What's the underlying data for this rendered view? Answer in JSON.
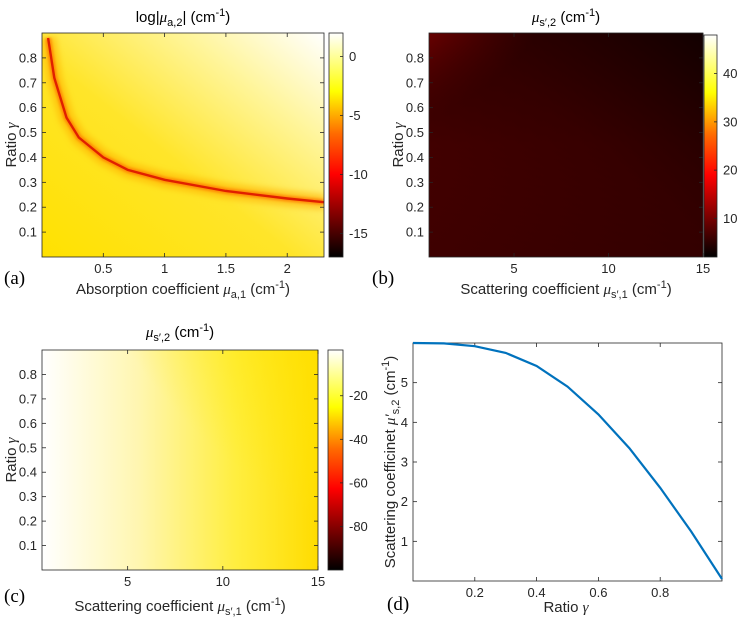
{
  "chart_data": [
    {
      "panel": "(a)",
      "type": "heatmap",
      "title": "log|μa,2| (cm-1)",
      "title_parts": {
        "pre": "log|",
        "sym": "μ",
        "sub": "a,2",
        "post": "| (cm",
        "sup": "-1",
        "end": ")"
      },
      "xlabel": "Absorption coefficient μa,1 (cm-1)",
      "xlabel_parts": {
        "pre": "Absorption coefficient ",
        "sym": "μ",
        "sub": "a,1",
        "post": " (cm",
        "sup": "-1",
        "end": ")"
      },
      "ylabel": "Ratio γ",
      "ylabel_parts": {
        "pre": "Ratio ",
        "sym": "γ"
      },
      "xlim": [
        0,
        2.3
      ],
      "ylim": [
        0,
        0.9
      ],
      "xticks": [
        "0.5",
        "1",
        "1.5",
        "2"
      ],
      "yticks": [
        "0.1",
        "0.2",
        "0.3",
        "0.4",
        "0.5",
        "0.6",
        "0.7",
        "0.8"
      ],
      "colorbar": {
        "min": -17,
        "max": 2,
        "ticks": [
          "0",
          "-5",
          "-10",
          "-15"
        ],
        "colormap": "hot"
      },
      "description_curve": {
        "x": [
          0.05,
          0.1,
          0.2,
          0.3,
          0.5,
          0.7,
          1.0,
          1.5,
          2.0,
          2.3
        ],
        "gamma": [
          0.88,
          0.72,
          0.56,
          0.48,
          0.4,
          0.35,
          0.31,
          0.265,
          0.235,
          0.22
        ]
      }
    },
    {
      "panel": "(b)",
      "type": "heatmap",
      "title": "μs′,2 (cm-1)",
      "title_parts": {
        "sym": "μ",
        "sub": "s′,2",
        "post": " (cm",
        "sup": "-1",
        "end": ")"
      },
      "xlabel": "Scattering coefficient μs′,1 (cm-1)",
      "xlabel_parts": {
        "pre": "Scattering coefficient ",
        "sym": "μ",
        "sub": "s′,1",
        "post": " (cm",
        "sup": "-1",
        "end": ")"
      },
      "ylabel": "Ratio γ",
      "ylabel_parts": {
        "pre": "Ratio ",
        "sym": "γ"
      },
      "xlim": [
        0.5,
        15
      ],
      "ylim": [
        0,
        0.9
      ],
      "xticks": [
        "5",
        "10",
        "15"
      ],
      "yticks": [
        "0.1",
        "0.2",
        "0.3",
        "0.4",
        "0.5",
        "0.6",
        "0.7",
        "0.8"
      ],
      "colorbar": {
        "min": 2,
        "max": 48,
        "ticks": [
          "40",
          "30",
          "20",
          "10"
        ],
        "colormap": "hot"
      }
    },
    {
      "panel": "(c)",
      "type": "heatmap",
      "title": "μs′,2 (cm-1)",
      "title_parts": {
        "sym": "μ",
        "sub": "s′,2",
        "post": " (cm",
        "sup": "-1",
        "end": ")"
      },
      "xlabel": "Scattering coefficient μs′,1 (cm-1)",
      "xlabel_parts": {
        "pre": "Scattering coefficient ",
        "sym": "μ",
        "sub": "s′,1",
        "post": " (cm",
        "sup": "-1",
        "end": ")"
      },
      "ylabel": "Ratio γ",
      "ylabel_parts": {
        "pre": "Ratio ",
        "sym": "γ"
      },
      "xlim": [
        0.5,
        15
      ],
      "ylim": [
        0,
        0.9
      ],
      "xticks": [
        "5",
        "10",
        "15"
      ],
      "yticks": [
        "0.1",
        "0.2",
        "0.3",
        "0.4",
        "0.5",
        "0.6",
        "0.7",
        "0.8"
      ],
      "colorbar": {
        "min": -100,
        "max": 1,
        "ticks": [
          "-20",
          "-40",
          "-60",
          "-80"
        ],
        "colormap": "hot"
      }
    },
    {
      "panel": "(d)",
      "type": "line",
      "xlabel": "Ratio γ",
      "xlabel_parts": {
        "pre": "Ratio ",
        "sym": "γ"
      },
      "ylabel": "Scattering coefficinet μ′s,2 (cm-1)",
      "ylabel_parts": {
        "pre": "Scattering coefficinet ",
        "sym": "μ′",
        "sub": "s,2",
        "post": " (cm",
        "sup": "-1",
        "end": ")"
      },
      "xlim": [
        0,
        1
      ],
      "ylim": [
        0,
        6
      ],
      "xticks": [
        "0.2",
        "0.4",
        "0.6",
        "0.8"
      ],
      "yticks": [
        "1",
        "2",
        "3",
        "4",
        "5"
      ],
      "series": [
        {
          "name": "μ′s,2",
          "color": "#0072bd",
          "x": [
            0,
            0.1,
            0.2,
            0.3,
            0.4,
            0.5,
            0.6,
            0.7,
            0.8,
            0.9,
            1.0
          ],
          "values": [
            6.0,
            5.99,
            5.92,
            5.75,
            5.42,
            4.9,
            4.2,
            3.35,
            2.35,
            1.25,
            0.05
          ]
        }
      ]
    }
  ],
  "panel_labels": [
    "(a)",
    "(b)",
    "(c)",
    "(d)"
  ]
}
